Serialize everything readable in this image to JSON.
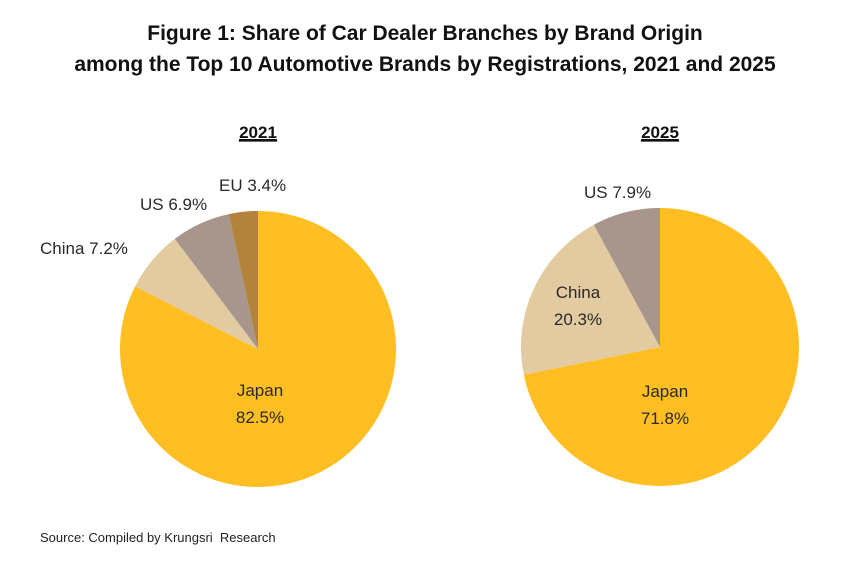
{
  "title_line1": "Figure 1: Share of Car Dealer Branches by Brand Origin",
  "title_line2": "among the Top 10 Automotive Brands by Registrations, 2021 and 2025",
  "source": "Source: Compiled by Krungsri  Research",
  "chart_data": [
    {
      "type": "pie",
      "title": "2021",
      "slices": [
        {
          "name": "Japan",
          "value": 82.5,
          "label": "82.5%",
          "color": "#FFBF22"
        },
        {
          "name": "China",
          "value": 7.2,
          "label": "7.2%",
          "color": "#E2CBA1"
        },
        {
          "name": "US",
          "value": 6.9,
          "label": "6.9%",
          "color": "#A8958C"
        },
        {
          "name": "EU",
          "value": 3.4,
          "label": "3.4%",
          "color": "#B2833A"
        }
      ]
    },
    {
      "type": "pie",
      "title": "2025",
      "slices": [
        {
          "name": "Japan",
          "value": 71.8,
          "label": "71.8%",
          "color": "#FFBF22"
        },
        {
          "name": "China",
          "value": 20.3,
          "label": "20.3%",
          "color": "#E2CBA1"
        },
        {
          "name": "US",
          "value": 7.9,
          "label": "7.9%",
          "color": "#A8958C"
        }
      ]
    }
  ]
}
